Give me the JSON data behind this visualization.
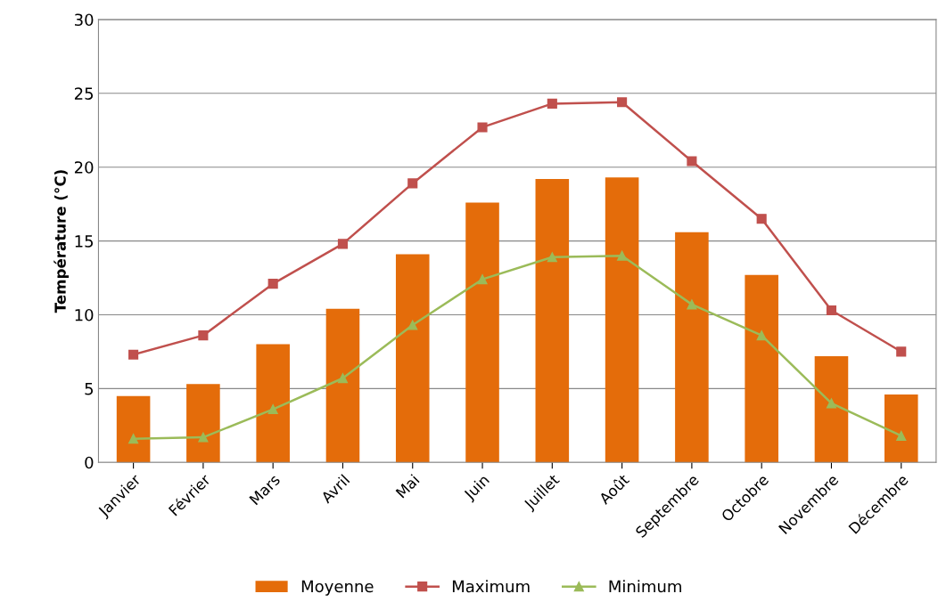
{
  "chart_data": {
    "type": "bar",
    "ylabel": "Température (°C)",
    "categories": [
      "Janvier",
      "Février",
      "Mars",
      "Avril",
      "Mai",
      "Juin",
      "Juillet",
      "Août",
      "Septembre",
      "Octobre",
      "Novembre",
      "Décembre"
    ],
    "series": [
      {
        "name": "Moyenne",
        "color": "#e46c0a",
        "values": [
          4.5,
          5.3,
          8.0,
          10.4,
          14.1,
          17.6,
          19.2,
          19.3,
          15.6,
          12.7,
          7.2,
          4.6
        ]
      },
      {
        "name": "Maximum",
        "type": "line",
        "marker": "square",
        "color": "#c0504d",
        "values": [
          7.3,
          8.6,
          12.1,
          14.8,
          18.9,
          22.7,
          24.3,
          24.4,
          20.4,
          16.5,
          10.3,
          7.5
        ]
      },
      {
        "name": "Minimum",
        "type": "line",
        "marker": "triangle",
        "color": "#9bbb59",
        "values": [
          1.6,
          1.7,
          3.6,
          5.7,
          9.3,
          12.4,
          13.9,
          14.0,
          10.7,
          8.6,
          4.0,
          1.8
        ]
      }
    ],
    "ylim": [
      0,
      30
    ],
    "yticks": [
      0,
      5,
      10,
      15,
      20,
      25,
      30
    ],
    "grid": "y",
    "legend": "bottom"
  }
}
